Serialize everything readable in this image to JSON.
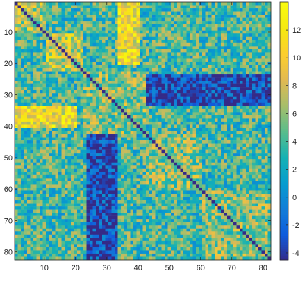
{
  "chart_data": {
    "type": "heatmap",
    "title": "",
    "xlabel": "",
    "ylabel": "",
    "n": 82,
    "xlim": [
      0.5,
      82.5
    ],
    "ylim": [
      0.5,
      82.5
    ],
    "y_direction": "top-to-bottom",
    "x_ticks": [
      10,
      20,
      30,
      40,
      50,
      60,
      70,
      80
    ],
    "y_ticks": [
      10,
      20,
      30,
      40,
      50,
      60,
      70,
      80
    ],
    "colorbar": {
      "range": [
        -4.5,
        14
      ],
      "ticks": [
        -4,
        -2,
        0,
        2,
        4,
        6,
        8,
        10,
        12
      ],
      "colormap": "parula"
    },
    "diagonal_value": -4.5,
    "blocks": [
      {
        "rows": [
          1,
          10
        ],
        "cols": [
          1,
          10
        ],
        "value": 7
      },
      {
        "rows": [
          11,
          22
        ],
        "cols": [
          11,
          22
        ],
        "value": 8
      },
      {
        "rows": [
          23,
          42
        ],
        "cols": [
          23,
          42
        ],
        "value": 6
      },
      {
        "rows": [
          43,
          60
        ],
        "cols": [
          43,
          60
        ],
        "value": 6
      },
      {
        "rows": [
          61,
          82
        ],
        "cols": [
          61,
          82
        ],
        "value": 6
      },
      {
        "rows": [
          24,
          33
        ],
        "cols": [
          43,
          82
        ],
        "value": -3.5
      },
      {
        "rows": [
          43,
          82
        ],
        "cols": [
          24,
          33
        ],
        "value": -3.5
      },
      {
        "rows": [
          29,
          32
        ],
        "cols": [
          68,
          74
        ],
        "value": -4
      },
      {
        "rows": [
          68,
          74
        ],
        "cols": [
          29,
          32
        ],
        "value": -4
      },
      {
        "rows": [
          34,
          40
        ],
        "cols": [
          1,
          20
        ],
        "value": 10
      },
      {
        "rows": [
          1,
          20
        ],
        "cols": [
          34,
          40
        ],
        "value": 10
      },
      {
        "rows": [
          1,
          10
        ],
        "cols": [
          43,
          60
        ],
        "value": 4
      },
      {
        "rows": [
          43,
          60
        ],
        "cols": [
          1,
          10
        ],
        "value": 4
      }
    ],
    "background_value": 4
  }
}
